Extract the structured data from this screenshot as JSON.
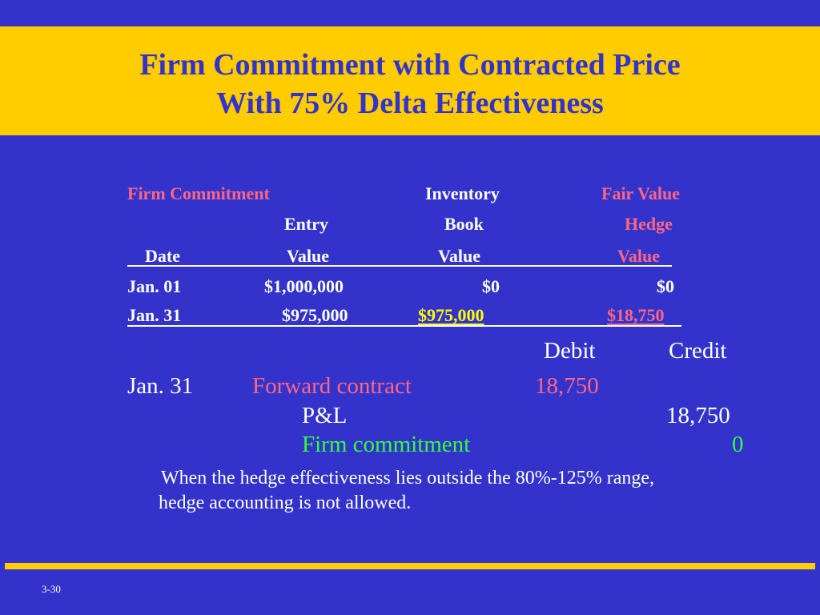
{
  "slide": {
    "title_line1": "Firm Commitment with Contracted Price",
    "title_line2": "With 75% Delta Effectiveness",
    "page_number": "3-30"
  },
  "table": {
    "header_row1": {
      "c1": "Firm Commitment",
      "c3": "Inventory",
      "c4": "Fair Value"
    },
    "header_row2": {
      "c2": "Entry",
      "c3": "Book",
      "c4": "Hedge"
    },
    "header_row3": {
      "c1": "Date",
      "c2": "Value",
      "c3": "Value",
      "c4": "Value"
    },
    "rows": [
      {
        "date": "Jan. 01",
        "entry_value": "$1,000,000",
        "book_value": "$0",
        "hedge_value": "$0"
      },
      {
        "date": "Jan. 31",
        "entry_value": "$975,000",
        "book_value": "$975,000",
        "hedge_value": "$18,750"
      }
    ]
  },
  "journal": {
    "debit_label": "Debit",
    "credit_label": "Credit",
    "date": "Jan. 31",
    "lines": [
      {
        "account": "Forward contract",
        "debit": "18,750",
        "credit": ""
      },
      {
        "account": "P&L",
        "debit": "",
        "credit": "18,750"
      },
      {
        "account": "Firm commitment",
        "debit": "",
        "credit": "0"
      }
    ]
  },
  "note": {
    "line1": "When the hedge effectiveness lies outside the 80%-125% range,",
    "line2": "hedge accounting is not allowed."
  },
  "colors": {
    "background": "#3333cc",
    "title_band": "#ffcc00",
    "title_text": "#3333cc",
    "pink": "#ff6680",
    "yellow": "#ffff00",
    "green": "#33ff33"
  }
}
